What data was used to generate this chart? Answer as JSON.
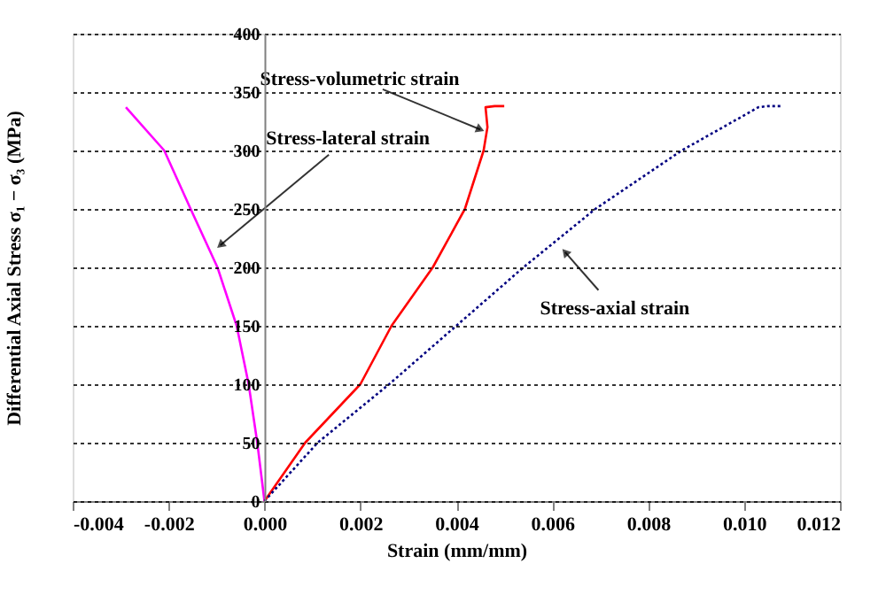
{
  "chart_data": {
    "type": "line",
    "xlabel": "Strain (mm/mm)",
    "ylabel": "Differential Axial Stress σ₁ − σ₃ (MPa)",
    "xlim": [
      -0.004,
      0.012
    ],
    "xticks": [
      {
        "value": -0.004,
        "label": "-0.004"
      },
      {
        "value": -0.002,
        "label": "-0.002"
      },
      {
        "value": 0,
        "label": "0.000"
      },
      {
        "value": 0.002,
        "label": "0.002"
      },
      {
        "value": 0.004,
        "label": "0.004"
      },
      {
        "value": 0.006,
        "label": "0.006"
      },
      {
        "value": 0.008,
        "label": "0.008"
      },
      {
        "value": 0.01,
        "label": "0.010"
      },
      {
        "value": 0.012,
        "label": "0.012"
      }
    ],
    "ylim": [
      0,
      400
    ],
    "yticks": [
      0,
      50,
      100,
      150,
      200,
      250,
      300,
      350,
      400
    ],
    "grid": "y",
    "marker": "none",
    "series": [
      {
        "color": "#ff00ff",
        "line_style": "solid",
        "x": [
          0,
          -0.00015,
          -0.00033,
          -0.00058,
          -0.00098,
          -0.00154,
          -0.00209,
          -0.00289
        ],
        "values": [
          0,
          50,
          100,
          150,
          200,
          250,
          300,
          337
        ]
      },
      {
        "color": "#ff0000",
        "line_style": "solid",
        "x": [
          0,
          0.00085,
          0.002,
          0.00265,
          0.00351,
          0.00418,
          0.00457,
          0.00465,
          0.00461,
          0.0048,
          0.005
        ],
        "values": [
          0,
          50,
          100,
          150,
          200,
          250,
          300,
          320,
          337,
          338,
          338
        ]
      },
      {
        "color": "#000080",
        "line_style": "dotted",
        "x": [
          0,
          0.00111,
          0.0026,
          0.004,
          0.0054,
          0.0069,
          0.0087,
          0.0103,
          0.0105,
          0.0108
        ],
        "values": [
          0,
          50,
          100,
          150,
          200,
          250,
          300,
          337,
          338,
          338
        ]
      }
    ],
    "annotations": [
      {
        "text": "Stress-volumetric strain",
        "x": 0.0045,
        "y": 318
      },
      {
        "text": "Stress-lateral strain",
        "x": -0.00092,
        "y": 219
      },
      {
        "text": "Stress-axial strain",
        "x": 0.00627,
        "y": 213
      }
    ]
  }
}
